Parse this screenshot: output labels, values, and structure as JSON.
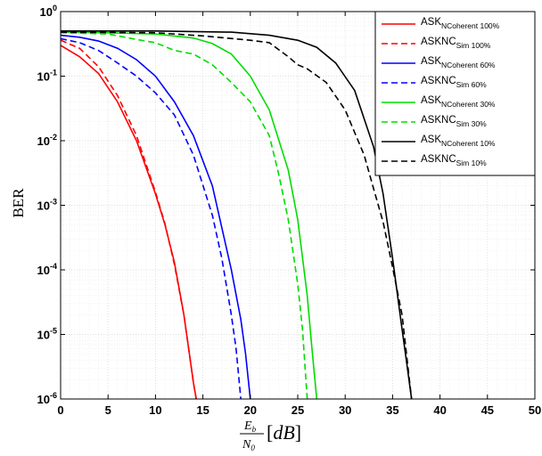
{
  "chart_data": {
    "type": "line",
    "xlabel": {
      "frac_num": "E",
      "frac_num_sub": "b",
      "frac_den": "N",
      "frac_den_sub": "0",
      "unit_open": "[",
      "unit": "dB",
      "unit_close": "]"
    },
    "ylabel": "BER",
    "xlim": [
      0,
      50
    ],
    "ylim": [
      1e-06,
      1
    ],
    "yscale": "log",
    "grid": true,
    "legend_position": "top-right",
    "x_ticks": [
      "0",
      "5",
      "10",
      "15",
      "20",
      "25",
      "30",
      "35",
      "40",
      "45",
      "50"
    ],
    "y_ticks": [
      {
        "base": "10",
        "exp": "0"
      },
      {
        "base": "10",
        "exp": "-1"
      },
      {
        "base": "10",
        "exp": "-2"
      },
      {
        "base": "10",
        "exp": "-3"
      },
      {
        "base": "10",
        "exp": "-4"
      },
      {
        "base": "10",
        "exp": "-5"
      },
      {
        "base": "10",
        "exp": "-6"
      }
    ],
    "series": [
      {
        "name": "ASK",
        "sub": "NCoherent 100%",
        "color": "#ff0000",
        "dash": "solid",
        "x": [
          0,
          2,
          4,
          6,
          8,
          10,
          11,
          12,
          13,
          14,
          14.3
        ],
        "y": [
          0.3,
          0.2,
          0.11,
          0.04,
          0.01,
          0.0015,
          0.0005,
          0.00013,
          2e-05,
          1.8e-06,
          1e-06
        ]
      },
      {
        "name": "ASKNC",
        "sub": "Sim 100%",
        "color": "#ff0000",
        "dash": "dashed",
        "x": [
          0,
          2,
          4,
          6,
          8,
          10,
          11,
          12,
          13,
          14,
          14.3
        ],
        "y": [
          0.36,
          0.27,
          0.14,
          0.05,
          0.012,
          0.0016,
          0.00052,
          0.00012,
          2e-05,
          1.8e-06,
          1e-06
        ]
      },
      {
        "name": "ASK",
        "sub": "NCoherent 60%",
        "color": "#0000ff",
        "dash": "solid",
        "x": [
          0,
          2,
          4,
          6,
          8,
          10,
          12,
          14,
          16,
          18,
          19,
          19.5,
          20
        ],
        "y": [
          0.43,
          0.4,
          0.35,
          0.27,
          0.18,
          0.1,
          0.04,
          0.012,
          0.002,
          0.0001,
          1.7e-05,
          5e-06,
          1e-06
        ]
      },
      {
        "name": "ASKNC",
        "sub": "Sim 60%",
        "color": "#0000ff",
        "dash": "dashed",
        "x": [
          0,
          2,
          4,
          6,
          8,
          10,
          12,
          14,
          16,
          17,
          18,
          18.5,
          19
        ],
        "y": [
          0.38,
          0.33,
          0.25,
          0.16,
          0.1,
          0.055,
          0.025,
          0.006,
          0.0007,
          0.00015,
          2e-05,
          6e-06,
          1e-06
        ]
      },
      {
        "name": "ASK",
        "sub": "NCoherent 30%",
        "color": "#00dd00",
        "dash": "solid",
        "x": [
          0,
          5,
          10,
          14,
          16,
          18,
          20,
          22,
          24,
          25,
          26,
          26.5,
          27
        ],
        "y": [
          0.48,
          0.47,
          0.45,
          0.39,
          0.32,
          0.22,
          0.1,
          0.03,
          0.0035,
          0.0006,
          4e-05,
          6e-06,
          1e-06
        ]
      },
      {
        "name": "ASKNC",
        "sub": "Sim 30%",
        "color": "#00dd00",
        "dash": "dashed",
        "x": [
          0,
          5,
          8,
          10,
          12,
          14,
          16,
          18,
          20,
          22,
          23,
          24,
          25,
          25.5,
          26
        ],
        "y": [
          0.47,
          0.45,
          0.37,
          0.33,
          0.25,
          0.22,
          0.15,
          0.08,
          0.04,
          0.012,
          0.003,
          0.0006,
          6e-05,
          1.2e-05,
          1e-06
        ]
      },
      {
        "name": "ASK",
        "sub": "NCoherent 10%",
        "color": "#000000",
        "dash": "solid",
        "x": [
          0,
          10,
          18,
          22,
          25,
          27,
          29,
          31,
          33,
          34,
          35,
          36,
          36.5,
          37
        ],
        "y": [
          0.5,
          0.5,
          0.48,
          0.43,
          0.36,
          0.28,
          0.16,
          0.06,
          0.008,
          0.0015,
          0.00015,
          1.2e-05,
          3.5e-06,
          1e-06
        ]
      },
      {
        "name": "ASKNC",
        "sub": "Sim 10%",
        "color": "#000000",
        "dash": "dashed",
        "x": [
          0,
          10,
          15,
          20,
          22,
          24,
          25,
          26,
          28,
          30,
          32,
          33,
          34,
          35,
          36,
          37
        ],
        "y": [
          0.48,
          0.47,
          0.42,
          0.36,
          0.33,
          0.2,
          0.15,
          0.13,
          0.08,
          0.03,
          0.006,
          0.0018,
          0.00055,
          0.00011,
          2e-05,
          1e-06
        ]
      }
    ]
  }
}
